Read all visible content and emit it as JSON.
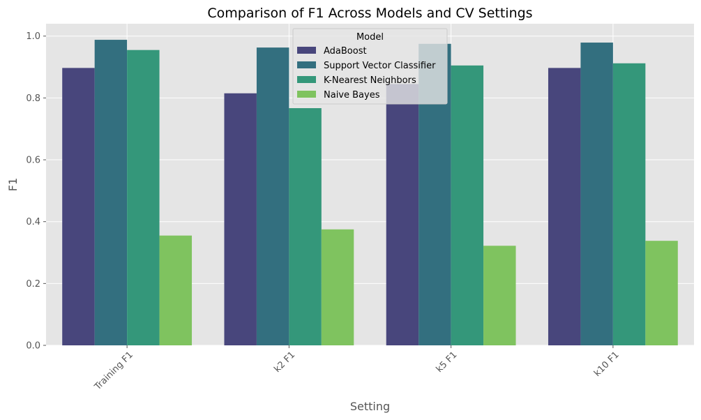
{
  "chart_data": {
    "type": "bar",
    "title": "Comparison of F1 Across Models and CV Settings",
    "xlabel": "Setting",
    "ylabel": "F1",
    "ylim": [
      0,
      1.04
    ],
    "yticks": [
      "0.0",
      "0.2",
      "0.4",
      "0.6",
      "0.8",
      "1.0"
    ],
    "ytick_values": [
      0,
      0.2,
      0.4,
      0.6,
      0.8,
      1.0
    ],
    "grid": true,
    "legend": {
      "title": "Model",
      "placement": "top-center"
    },
    "categories": [
      "Training F1",
      "k2 F1",
      "k5 F1",
      "k10 F1"
    ],
    "series": [
      {
        "name": "AdaBoost",
        "color": "#48467c",
        "values": [
          0.897,
          0.815,
          0.845,
          0.897
        ]
      },
      {
        "name": "Support Vector Classifier",
        "color": "#336f7f",
        "values": [
          0.988,
          0.963,
          0.975,
          0.979
        ]
      },
      {
        "name": "K-Nearest Neighbors",
        "color": "#34977a",
        "values": [
          0.955,
          0.767,
          0.905,
          0.912
        ]
      },
      {
        "name": "Naive Bayes",
        "color": "#7fc35f",
        "values": [
          0.355,
          0.375,
          0.322,
          0.338
        ]
      }
    ]
  }
}
